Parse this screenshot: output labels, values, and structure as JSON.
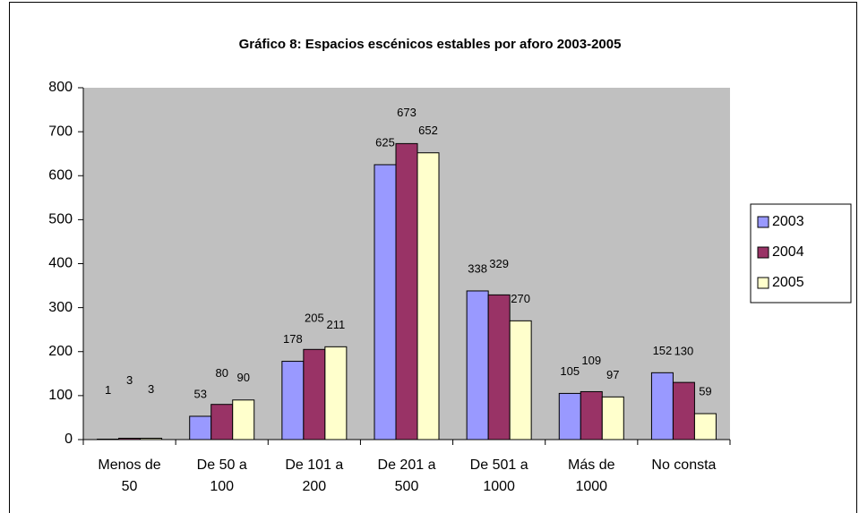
{
  "chart_data": {
    "type": "bar",
    "title": "Gráfico 8: Espacios escénicos estables por aforo 2003-2005",
    "categories": [
      "Menos de 50",
      "De 50 a 100",
      "De 101 a 200",
      "De 201 a 500",
      "De 501 a 1000",
      "Más de 1000",
      "No consta"
    ],
    "series": [
      {
        "name": "2003",
        "color": "#9999ff",
        "values": [
          1,
          53,
          178,
          625,
          338,
          105,
          152
        ]
      },
      {
        "name": "2004",
        "color": "#993366",
        "values": [
          3,
          80,
          205,
          673,
          329,
          109,
          130
        ]
      },
      {
        "name": "2005",
        "color": "#ffffcc",
        "values": [
          3,
          90,
          211,
          652,
          270,
          97,
          59
        ]
      }
    ],
    "ylim": [
      0,
      800
    ],
    "yticks": [
      0,
      100,
      200,
      300,
      400,
      500,
      600,
      700,
      800
    ],
    "plot_background": "#c0c0c0",
    "legend": "right"
  }
}
